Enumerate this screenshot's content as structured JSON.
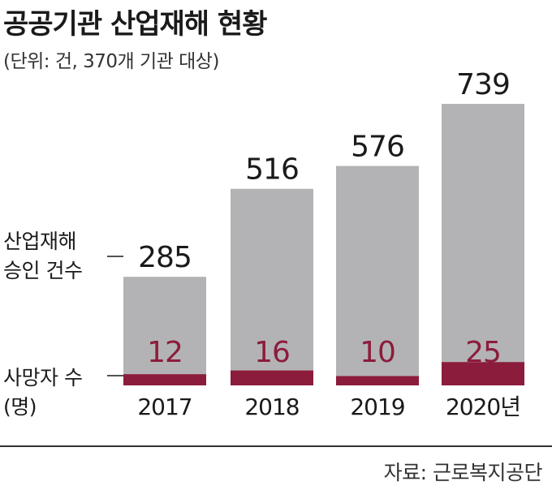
{
  "title": "공공기관 산업재해 현황",
  "subtitle": "(단위: 건, 370개 기관 대상)",
  "source": "자료: 근로복지공단",
  "legend": {
    "approved_line1": "산업재해",
    "approved_line2": "승인 건수",
    "deaths_line1": "사망자 수",
    "deaths_line2": "(명)"
  },
  "colors": {
    "approved": "#b3b3b5",
    "deaths": "#8c1c3c",
    "text": "#1a1a1a"
  },
  "chart_data": {
    "type": "bar",
    "categories": [
      "2017",
      "2018",
      "2019",
      "2020년"
    ],
    "series": [
      {
        "name": "산업재해 승인 건수",
        "values": [
          285,
          516,
          576,
          739
        ]
      },
      {
        "name": "사망자 수 (명)",
        "values": [
          12,
          16,
          10,
          25
        ]
      }
    ],
    "title": "공공기관 산업재해 현황",
    "subtitle": "(단위: 건, 370개 기관 대상)",
    "xlabel": "",
    "ylabel": "",
    "ylim": [
      0,
      739
    ],
    "grid": false,
    "legend": "left"
  }
}
